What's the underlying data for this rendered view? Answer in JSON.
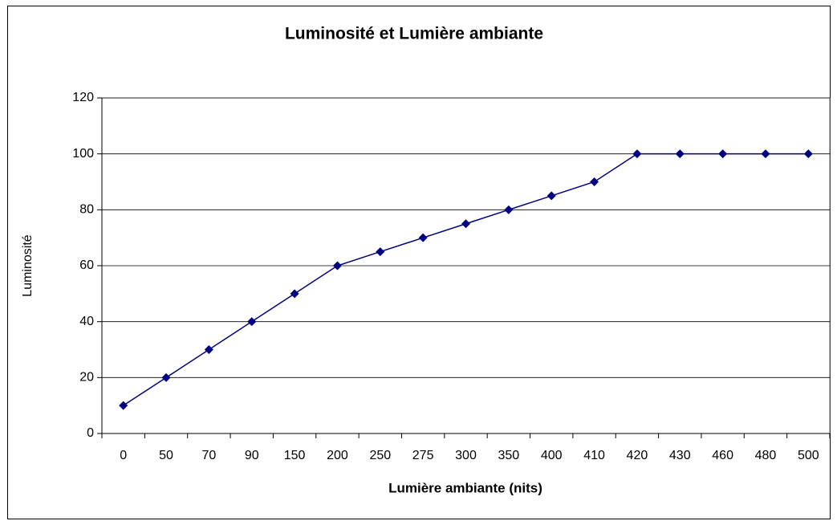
{
  "chart_data": {
    "type": "line",
    "title": "Luminosité et Lumière ambiante",
    "x_label": "Lumière ambiante (nits)",
    "y_label": "Luminosité",
    "categories": [
      "0",
      "50",
      "70",
      "90",
      "150",
      "200",
      "250",
      "275",
      "300",
      "350",
      "400",
      "410",
      "420",
      "430",
      "460",
      "480",
      "500"
    ],
    "series": [
      {
        "name": "Luminosité",
        "color": "#000080",
        "values": [
          10,
          20,
          30,
          40,
          50,
          60,
          65,
          70,
          75,
          80,
          85,
          90,
          100,
          100,
          100,
          100,
          100
        ]
      }
    ],
    "ylim": [
      0,
      120
    ],
    "yticks": [
      0,
      20,
      40,
      60,
      80,
      100,
      120
    ],
    "grid": true
  }
}
